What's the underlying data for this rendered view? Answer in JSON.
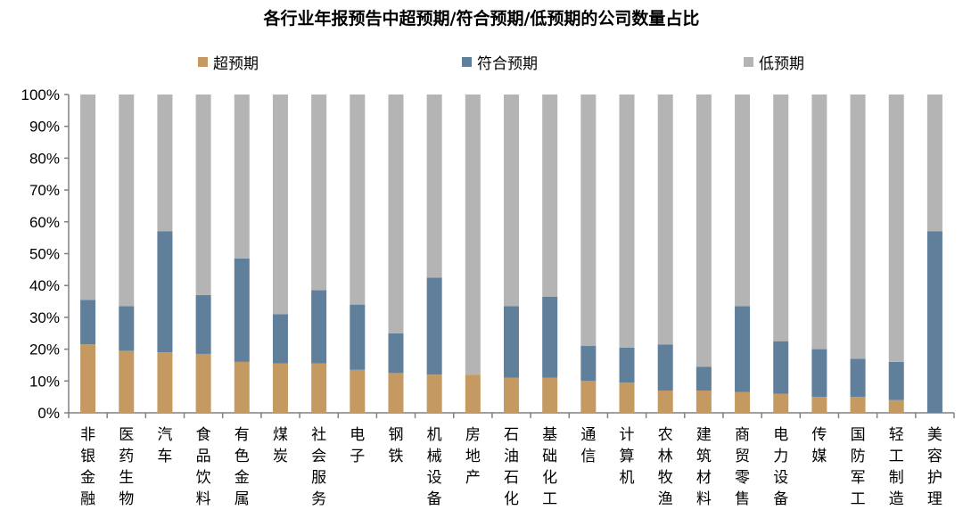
{
  "chart_data": {
    "type": "bar",
    "stacked": true,
    "title": "各行业年报预告中超预期/符合预期/低预期的公司数量占比",
    "categories": [
      "非银金融",
      "医药生物",
      "汽车",
      "食品饮料",
      "有色金属",
      "煤炭",
      "社会服务",
      "电子",
      "钢铁",
      "机械设备",
      "房地产",
      "石油石化",
      "基础化工",
      "通信",
      "计算机",
      "农林牧渔",
      "建筑材料",
      "商贸零售",
      "电力设备",
      "传媒",
      "国防军工",
      "轻工制造",
      "美容护理"
    ],
    "series": [
      {
        "name": "超预期",
        "color": "#C49A62",
        "values": [
          21.5,
          19.5,
          19,
          18.5,
          16,
          15.5,
          15.5,
          13.5,
          12.5,
          12,
          12,
          11,
          11,
          10,
          9.5,
          7,
          7,
          6.5,
          6,
          5,
          5,
          4,
          0
        ]
      },
      {
        "name": "符合预期",
        "color": "#5F7F9A",
        "values": [
          14,
          14,
          38,
          18.5,
          32.5,
          15.5,
          23,
          20.5,
          12.5,
          30.5,
          0,
          22.5,
          25.5,
          11,
          11,
          14.5,
          7.5,
          27,
          16.5,
          15,
          12,
          12,
          57
        ]
      },
      {
        "name": "低预期",
        "color": "#B4B4B4",
        "values": [
          64.5,
          66.5,
          43,
          63,
          51.5,
          69,
          61.5,
          66,
          75,
          57.5,
          88,
          66.5,
          63.5,
          79,
          79.5,
          78.5,
          85.5,
          66.5,
          77.5,
          80,
          83,
          84,
          43
        ]
      }
    ],
    "ylim": [
      0,
      100
    ],
    "yticks": [
      "0%",
      "10%",
      "20%",
      "30%",
      "40%",
      "50%",
      "60%",
      "70%",
      "80%",
      "90%",
      "100%"
    ],
    "legend_position": "top",
    "grid": false
  }
}
